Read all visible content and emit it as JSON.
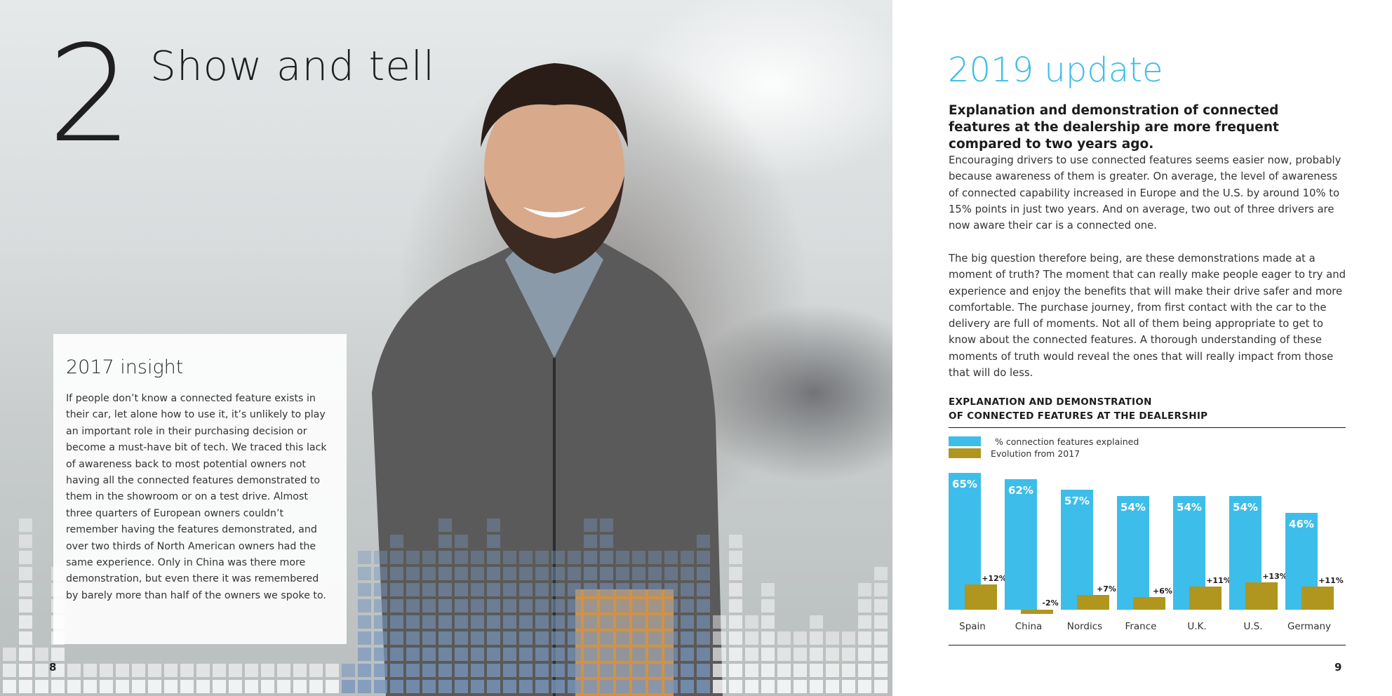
{
  "left_page": {
    "chapter_number": "2",
    "chapter_title": "Show and tell",
    "insight": {
      "title": "2017 insight",
      "body": "If people don’t know a connected feature exists in their car, let alone how to use it, it’s unlikely to play an important role in their purchasing decision or become a must-have bit of tech. We traced this lack of awareness back to most potential owners not having all the connected features demonstrated to them in the showroom or on a test drive. Almost three quarters of European owners couldn’t remember having the features demonstrated, and over two thirds of North American owners had the same experience. Only in China was there more demonstration, but even there it was remembered by barely more than half of the owners we spoke to."
    },
    "page_number": "8"
  },
  "right_page": {
    "title": "2019 update",
    "lead": "Explanation and demonstration of connected features at the dealership are more frequent compared to two years ago.",
    "paragraphs": [
      "Encouraging drivers to use connected features seems easier now, probably because awareness of them is greater. On average, the level of awareness of connected capability increased in Europe and the U.S. by around 10% to 15% points in just two years. And on average, two out of three drivers are now aware their car is a connected one.",
      "The big question therefore being, are these demonstrations made at a moment of truth? The moment that can really make people eager to try and experience and enjoy the benefits that will make their drive safer and more comfortable. The purchase journey, from first contact with the car to the delivery are full of moments. Not all of them being appropriate to get to know about the connected features. A thorough understanding of these moments of truth would reveal the ones that will really impact from those that will do less."
    ],
    "page_number": "9"
  },
  "chart_data": {
    "type": "bar",
    "title_lines": [
      "EXPLANATION AND DEMONSTRATION",
      "OF CONNECTED FEATURES AT THE DEALERSHIP"
    ],
    "categories": [
      "Spain",
      "China",
      "Nordics",
      "France",
      "U.K.",
      "U.S.",
      "Germany"
    ],
    "series": [
      {
        "name": "% connection features explained",
        "color": "#3dbde9",
        "values": [
          65,
          62,
          57,
          54,
          54,
          54,
          46
        ],
        "labels": [
          "65%",
          "62%",
          "57%",
          "54%",
          "54%",
          "54%",
          "46%"
        ]
      },
      {
        "name": "Evolution from 2017",
        "color": "#b0951e",
        "values": [
          12,
          -2,
          7,
          6,
          11,
          13,
          11
        ],
        "labels": [
          "+12%",
          "-2%",
          "+7%",
          "+6%",
          "+11%",
          "+13%",
          "+11%"
        ]
      }
    ],
    "ylim": [
      0,
      70
    ],
    "grid": false,
    "legend": "top-left"
  }
}
